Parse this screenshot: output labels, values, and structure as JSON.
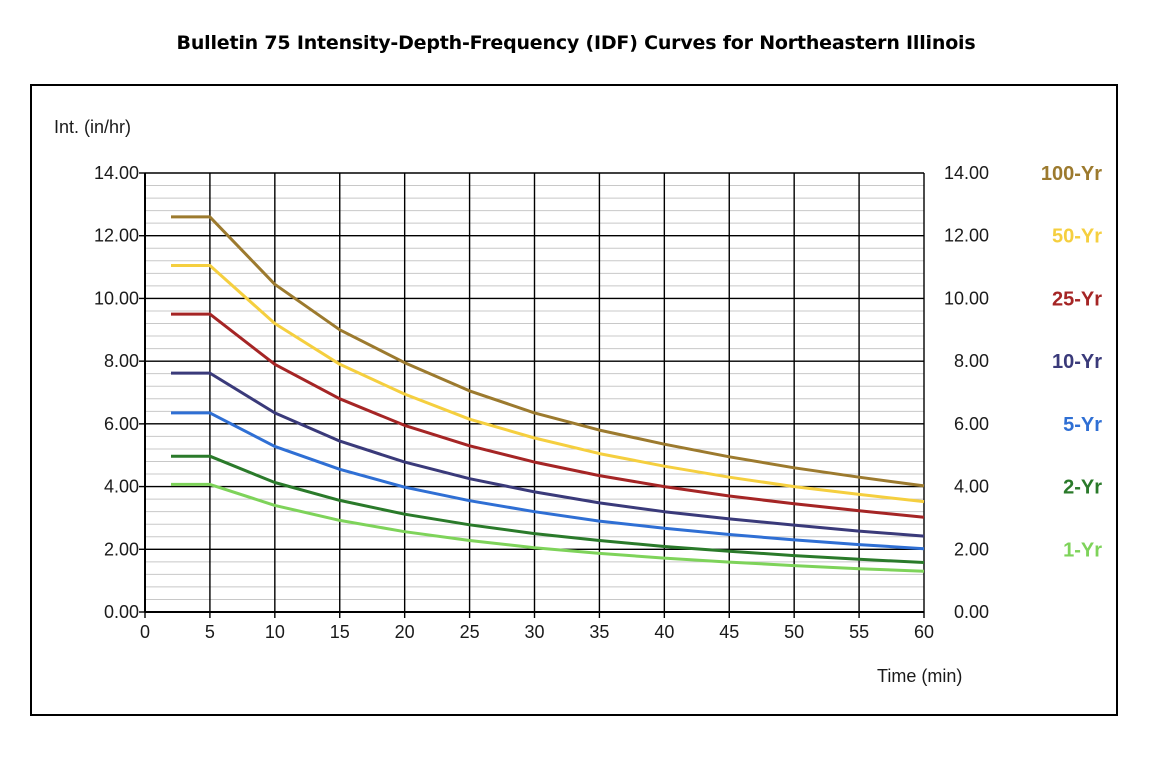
{
  "chart_data": {
    "type": "line",
    "title": "Bulletin 75 Intensity-Depth-Frequency (IDF) Curves for Northeastern Illinois",
    "ylabel": "Int. (in/hr)",
    "xlabel": "Time (min)",
    "xlim": [
      0,
      60
    ],
    "ylim": [
      0,
      14
    ],
    "x_ticks": [
      "0",
      "5",
      "10",
      "15",
      "20",
      "25",
      "30",
      "35",
      "40",
      "45",
      "50",
      "55",
      "60"
    ],
    "y_ticks": [
      "0.00",
      "2.00",
      "4.00",
      "6.00",
      "8.00",
      "10.00",
      "12.00",
      "14.00"
    ],
    "grid": true,
    "x": [
      2,
      5,
      10,
      15,
      20,
      25,
      30,
      35,
      40,
      45,
      50,
      55,
      60
    ],
    "series": [
      {
        "name": "100-Yr",
        "color": "#9c7a2e",
        "values": [
          12.6,
          12.6,
          10.45,
          9.0,
          7.95,
          7.05,
          6.35,
          5.8,
          5.35,
          4.95,
          4.6,
          4.3,
          4.02
        ]
      },
      {
        "name": "50-Yr",
        "color": "#f5cf3f",
        "values": [
          11.05,
          11.05,
          9.2,
          7.9,
          6.95,
          6.15,
          5.55,
          5.05,
          4.65,
          4.3,
          4.0,
          3.75,
          3.52
        ]
      },
      {
        "name": "25-Yr",
        "color": "#a52525",
        "values": [
          9.5,
          9.5,
          7.9,
          6.8,
          5.95,
          5.3,
          4.78,
          4.35,
          4.0,
          3.7,
          3.45,
          3.23,
          3.02
        ]
      },
      {
        "name": "10-Yr",
        "color": "#3a3a7a",
        "values": [
          7.62,
          7.62,
          6.35,
          5.45,
          4.78,
          4.25,
          3.83,
          3.48,
          3.2,
          2.97,
          2.77,
          2.58,
          2.42
        ]
      },
      {
        "name": "5-Yr",
        "color": "#2f6fd4",
        "values": [
          6.35,
          6.35,
          5.28,
          4.55,
          3.98,
          3.55,
          3.2,
          2.9,
          2.67,
          2.47,
          2.3,
          2.15,
          2.02
        ]
      },
      {
        "name": "2-Yr",
        "color": "#2a7a2a",
        "values": [
          4.97,
          4.97,
          4.13,
          3.56,
          3.12,
          2.78,
          2.5,
          2.28,
          2.09,
          1.94,
          1.8,
          1.68,
          1.58
        ]
      },
      {
        "name": "1-Yr",
        "color": "#7ed35a",
        "values": [
          4.07,
          4.07,
          3.4,
          2.92,
          2.56,
          2.28,
          2.05,
          1.87,
          1.72,
          1.59,
          1.48,
          1.38,
          1.3
        ]
      }
    ],
    "right_axis_ticks": [
      "14.00",
      "12.00",
      "10.00",
      "8.00",
      "6.00",
      "4.00",
      "2.00",
      "0.00"
    ]
  }
}
